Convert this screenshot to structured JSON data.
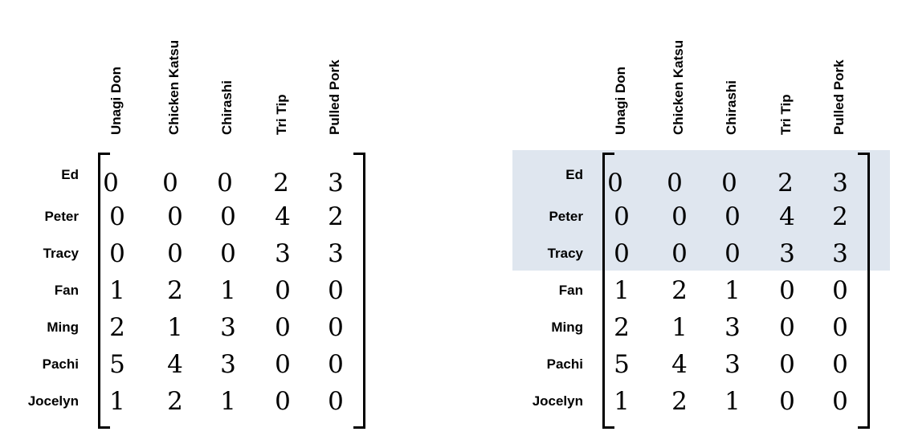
{
  "columns": [
    "Unagi Don",
    "Chicken Katsu",
    "Chirashi",
    "Tri Tip",
    "Pulled Pork"
  ],
  "rows": [
    "Ed",
    "Peter",
    "Tracy",
    "Fan",
    "Ming",
    "Pachi",
    "Jocelyn"
  ],
  "values": [
    [
      0,
      0,
      0,
      2,
      3
    ],
    [
      0,
      0,
      0,
      4,
      2
    ],
    [
      0,
      0,
      0,
      3,
      3
    ],
    [
      1,
      2,
      1,
      0,
      0
    ],
    [
      2,
      1,
      3,
      0,
      0
    ],
    [
      5,
      4,
      3,
      0,
      0
    ],
    [
      1,
      2,
      1,
      0,
      0
    ]
  ],
  "highlight_rows": [
    "Ed",
    "Peter",
    "Tracy"
  ],
  "highlight_color": "#dfe6ef"
}
